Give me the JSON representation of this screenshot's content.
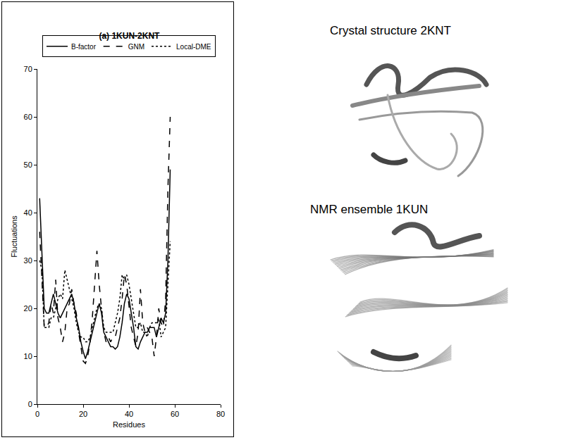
{
  "chart_data": {
    "type": "line",
    "title": "(a) 1KUN-2KNT",
    "x_label": "Residues",
    "y_label": "Fluctuations",
    "x": [
      1,
      2,
      3,
      4,
      5,
      6,
      7,
      8,
      9,
      10,
      11,
      12,
      13,
      14,
      15,
      16,
      17,
      18,
      19,
      20,
      21,
      22,
      23,
      24,
      25,
      26,
      27,
      28,
      29,
      30,
      31,
      32,
      33,
      34,
      35,
      36,
      37,
      38,
      39,
      40,
      41,
      42,
      43,
      44,
      45,
      46,
      47,
      48,
      49,
      50,
      51,
      52,
      53,
      54,
      55,
      56,
      57,
      58
    ],
    "series": [
      {
        "name": "B-factor",
        "color": "#000000",
        "line_style": "solid",
        "values": [
          43,
          30,
          20,
          19,
          19,
          21,
          23,
          21,
          19,
          18,
          19,
          20,
          21,
          22,
          23,
          21,
          18,
          16,
          13,
          11,
          9.5,
          11,
          13,
          15,
          17,
          19,
          21,
          19,
          15,
          14,
          13,
          12,
          12,
          11.5,
          12,
          14,
          17,
          21,
          23,
          22,
          19,
          16,
          12,
          11.5,
          13,
          14,
          15,
          15,
          16,
          16,
          16,
          14,
          16,
          18,
          17,
          19,
          30,
          49
        ]
      },
      {
        "name": "GNM",
        "color": "#000000",
        "line_style": "dash",
        "values": [
          36,
          25,
          16,
          16,
          17,
          21,
          19,
          26,
          18,
          16,
          13,
          15,
          20,
          21,
          24,
          21,
          19,
          15,
          12,
          9,
          8.5,
          10,
          13,
          18,
          25,
          32,
          25,
          20,
          15,
          13,
          14,
          13,
          14,
          14,
          16,
          18,
          22,
          27,
          25,
          20,
          16,
          14,
          12,
          15,
          24,
          17,
          15,
          16,
          15,
          14,
          10,
          14,
          20,
          17,
          16,
          22,
          45,
          60
        ]
      },
      {
        "name": "Local-DME",
        "color": "#000000",
        "line_style": "dot",
        "values": [
          30,
          28,
          16,
          16,
          16,
          18,
          18,
          20,
          22,
          23,
          22,
          28,
          26,
          24,
          22,
          20,
          17,
          15,
          14,
          14,
          13,
          13,
          14,
          16,
          18,
          20,
          21,
          20,
          16,
          15,
          15,
          15,
          15,
          17,
          19,
          22,
          27,
          26,
          27,
          25,
          22,
          19,
          16,
          16,
          17,
          15,
          15,
          14,
          16,
          17,
          17,
          17,
          18,
          14,
          15,
          16,
          25,
          34
        ]
      }
    ],
    "xlim": [
      0,
      80
    ],
    "xticks": [
      0,
      20,
      40,
      60,
      80
    ],
    "ylim": [
      0,
      70
    ],
    "yticks": [
      0,
      10,
      20,
      30,
      40,
      50,
      60,
      70
    ],
    "grid": false,
    "legend": "top"
  },
  "images": [
    {
      "caption": "Crystal structure 2KNT"
    },
    {
      "caption": "NMR ensemble 1KUN"
    }
  ]
}
